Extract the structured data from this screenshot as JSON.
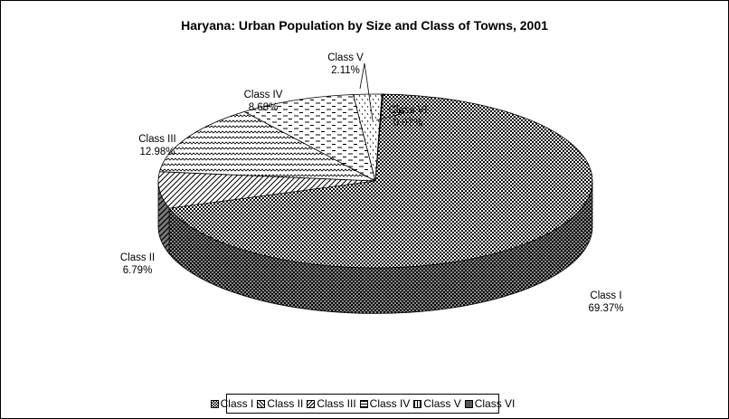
{
  "chart_data": {
    "type": "pie",
    "title": "Haryana: Urban Population by Size and Class of Towns, 2001",
    "categories": [
      "Class I",
      "Class II",
      "Class III",
      "Class IV",
      "Class V",
      "Class VI"
    ],
    "values": [
      69.37,
      6.79,
      12.98,
      8.68,
      2.11,
      0.07
    ],
    "data_labels": [
      {
        "name": "Class I",
        "value": "69.37%"
      },
      {
        "name": "Class II",
        "value": "6.79%"
      },
      {
        "name": "Class III",
        "value": "12.98%"
      },
      {
        "name": "Class IV",
        "value": "8.68%"
      },
      {
        "name": "Class V",
        "value": "2.11%"
      },
      {
        "name": "Class VI",
        "value": "0.07%"
      }
    ],
    "legend_position": "bottom",
    "style": "3d-pie-patterned"
  }
}
